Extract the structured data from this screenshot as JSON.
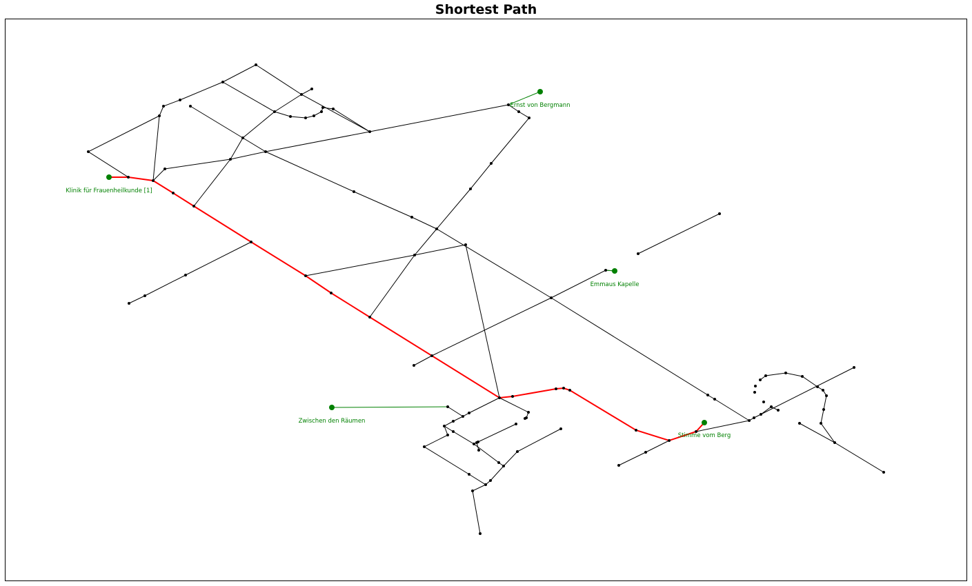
{
  "title": "Shortest Path",
  "colors": {
    "edge": "#000000",
    "path": "#ff0000",
    "poi": "#008000"
  },
  "pois": [
    {
      "id": "klinik",
      "label": "Klinik für Frauenheilkunde [1]"
    },
    {
      "id": "bergmann",
      "label": "Ernst von Bergmann"
    },
    {
      "id": "emmaus",
      "label": "Emmaus Kapelle"
    },
    {
      "id": "raeumen",
      "label": "Zwischen den Räumen"
    },
    {
      "id": "stimme",
      "label": "Stimme vom Berg"
    }
  ],
  "legend": "none",
  "grid": false
}
